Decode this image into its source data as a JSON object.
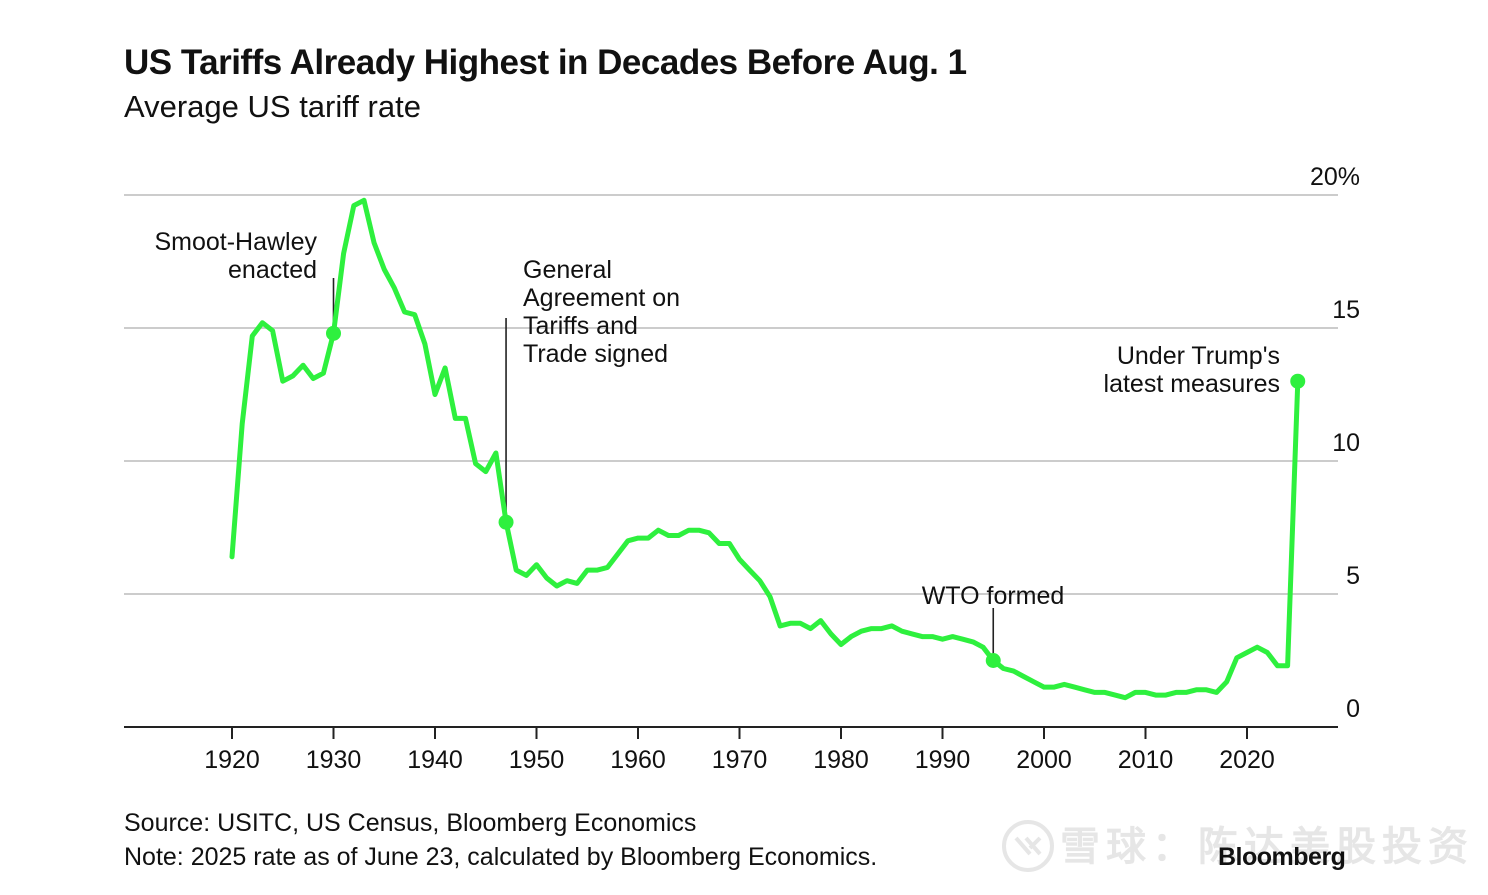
{
  "header": {
    "title": "US Tariffs Already Highest in Decades Before Aug. 1",
    "subtitle": "Average US tariff rate"
  },
  "footer": {
    "source": "Source: USITC, US Census, Bloomberg Economics",
    "note": "Note: 2025 rate as of June 23, calculated by Bloomberg Economics.",
    "brand": "Bloomberg"
  },
  "watermark": {
    "text": "雪球：陈达美股投资"
  },
  "colors": {
    "line": "#2ef03e",
    "grid": "#cccccc",
    "axis": "#222222",
    "text": "#111111",
    "leader": "#222222"
  },
  "chart_data": {
    "type": "line",
    "title": "US Tariffs Already Highest in Decades Before Aug. 1",
    "subtitle": "Average US tariff rate",
    "xlabel": "",
    "ylabel": "",
    "xlim": [
      1910,
      2034
    ],
    "ylim": [
      0,
      20
    ],
    "grid": true,
    "legend": "none",
    "x_ticks": [
      1920,
      1930,
      1940,
      1950,
      1960,
      1970,
      1980,
      1990,
      2000,
      2010,
      2020
    ],
    "x_tick_labels": [
      "1920",
      "1930",
      "1940",
      "1950",
      "1960",
      "1970",
      "1980",
      "1990",
      "2000",
      "2010",
      "2020"
    ],
    "y_ticks": [
      0,
      5,
      10,
      15,
      20
    ],
    "y_tick_labels": [
      "0",
      "5",
      "10",
      "15",
      "20%"
    ],
    "series": [
      {
        "x": [
          1920,
          1921,
          1922,
          1923,
          1924,
          1925,
          1926,
          1927,
          1928,
          1929,
          1930,
          1931,
          1932,
          1933,
          1934,
          1935,
          1936,
          1937,
          1938,
          1939,
          1940,
          1941,
          1942,
          1943,
          1944,
          1945,
          1946,
          1947,
          1948,
          1949,
          1950,
          1951,
          1952,
          1953,
          1954,
          1955,
          1956,
          1957,
          1958,
          1959,
          1960,
          1961,
          1962,
          1963,
          1964,
          1965,
          1966,
          1967,
          1968,
          1969,
          1970,
          1971,
          1972,
          1973,
          1974,
          1975,
          1976,
          1977,
          1978,
          1979,
          1980,
          1981,
          1982,
          1983,
          1984,
          1985,
          1986,
          1987,
          1988,
          1989,
          1990,
          1991,
          1992,
          1993,
          1994,
          1995,
          1996,
          1997,
          1998,
          1999,
          2000,
          2001,
          2002,
          2003,
          2004,
          2005,
          2006,
          2007,
          2008,
          2009,
          2010,
          2011,
          2012,
          2013,
          2014,
          2015,
          2016,
          2017,
          2018,
          2019,
          2020,
          2021,
          2022,
          2023,
          2024,
          2025
        ],
        "values": [
          6.4,
          11.4,
          14.7,
          15.2,
          14.9,
          13.0,
          13.2,
          13.6,
          13.1,
          13.3,
          14.8,
          17.8,
          19.6,
          19.8,
          18.2,
          17.2,
          16.5,
          15.6,
          15.5,
          14.4,
          12.5,
          13.5,
          11.6,
          11.6,
          9.9,
          9.6,
          10.3,
          7.7,
          5.9,
          5.7,
          6.1,
          5.6,
          5.3,
          5.5,
          5.4,
          5.9,
          5.9,
          6.0,
          6.5,
          7.0,
          7.1,
          7.1,
          7.4,
          7.2,
          7.2,
          7.4,
          7.4,
          7.3,
          6.9,
          6.9,
          6.3,
          5.9,
          5.5,
          4.9,
          3.8,
          3.9,
          3.9,
          3.7,
          4.0,
          3.5,
          3.1,
          3.4,
          3.6,
          3.7,
          3.7,
          3.8,
          3.6,
          3.5,
          3.4,
          3.4,
          3.3,
          3.4,
          3.3,
          3.2,
          3.0,
          2.5,
          2.2,
          2.1,
          1.9,
          1.7,
          1.5,
          1.5,
          1.6,
          1.5,
          1.4,
          1.3,
          1.3,
          1.2,
          1.1,
          1.3,
          1.3,
          1.2,
          1.2,
          1.3,
          1.3,
          1.4,
          1.4,
          1.3,
          1.7,
          2.6,
          2.8,
          3.0,
          2.8,
          2.3,
          2.3,
          13.0
        ]
      }
    ],
    "markers": [
      {
        "x": 1930,
        "y": 14.8
      },
      {
        "x": 1947,
        "y": 7.7
      },
      {
        "x": 1995,
        "y": 2.5
      },
      {
        "x": 2025,
        "y": 13.0
      }
    ],
    "annotations": [
      {
        "lines": [
          "Smoot-Hawley",
          "enacted"
        ],
        "x": 1930,
        "y": 14.8
      },
      {
        "lines": [
          "General",
          "Agreement on",
          "Tariffs and",
          "Trade signed"
        ],
        "x": 1947,
        "y": 7.7
      },
      {
        "lines": [
          "WTO formed"
        ],
        "x": 1995,
        "y": 2.5
      },
      {
        "lines": [
          "Under Trump's",
          "latest measures"
        ],
        "x": 2025,
        "y": 13.0
      }
    ]
  }
}
